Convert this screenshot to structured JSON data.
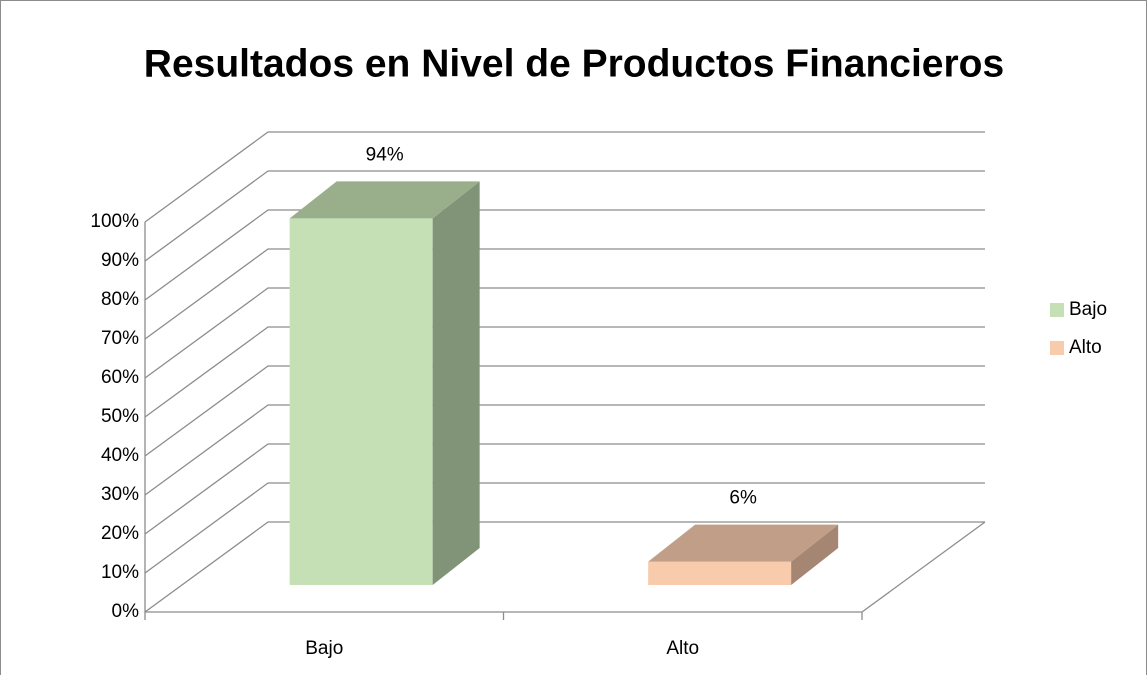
{
  "chart_data": {
    "type": "bar3d",
    "title": "Resultados en Nivel de Productos Financieros",
    "categories": [
      "Bajo",
      "Alto"
    ],
    "values": [
      94,
      6
    ],
    "value_labels": [
      "94%",
      "6%"
    ],
    "colors": [
      "#c4e0b4",
      "#f8cbad"
    ],
    "ylim": [
      0,
      100
    ],
    "yticks": [
      {
        "value": 0,
        "label": "0%"
      },
      {
        "value": 10,
        "label": "10%"
      },
      {
        "value": 20,
        "label": "20%"
      },
      {
        "value": 30,
        "label": "30%"
      },
      {
        "value": 40,
        "label": "40%"
      },
      {
        "value": 50,
        "label": "50%"
      },
      {
        "value": 60,
        "label": "60%"
      },
      {
        "value": 70,
        "label": "70%"
      },
      {
        "value": 80,
        "label": "80%"
      },
      {
        "value": 90,
        "label": "90%"
      },
      {
        "value": 100,
        "label": "100%"
      }
    ],
    "grid": true,
    "legend": "right"
  }
}
